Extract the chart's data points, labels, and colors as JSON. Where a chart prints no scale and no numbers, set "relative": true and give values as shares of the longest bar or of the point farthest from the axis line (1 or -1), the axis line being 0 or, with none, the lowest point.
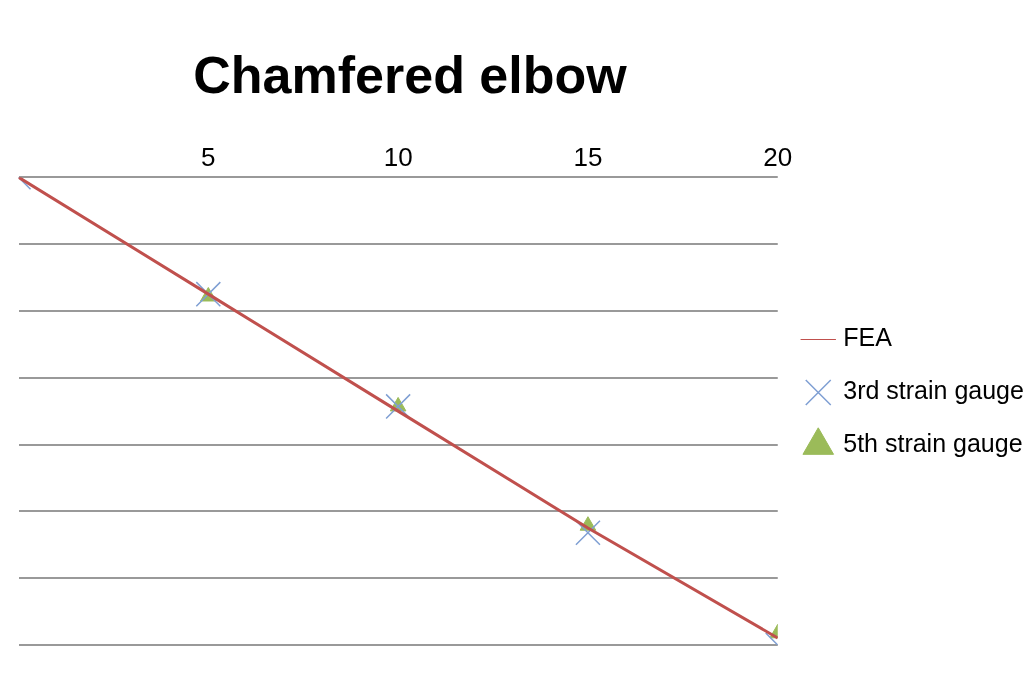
{
  "chart_data": {
    "type": "line",
    "title": "Chamfered elbow",
    "relative": true,
    "x": [
      0,
      5,
      10,
      15,
      20
    ],
    "xlim": [
      0,
      20
    ],
    "xticks": [
      5,
      10,
      15,
      20
    ],
    "grid": "y",
    "legend": "right",
    "series": [
      {
        "name": "FEA",
        "type": "line",
        "color": "#c0504d",
        "marker": "none",
        "line_style": "solid",
        "values": [
          0,
          -0.25,
          -0.5,
          -0.75,
          -0.985
        ]
      },
      {
        "name": "3rd strain gauge",
        "type": "scatter",
        "color": "#7f9fd3",
        "marker": "cross",
        "values": [
          0,
          -0.25,
          -0.49,
          -0.76,
          -1
        ]
      },
      {
        "name": "5th strain gauge",
        "type": "scatter",
        "color": "#9bbb59",
        "marker": "triangle",
        "values": [
          null,
          -0.255,
          -0.49,
          -0.745,
          -0.975
        ]
      }
    ]
  }
}
